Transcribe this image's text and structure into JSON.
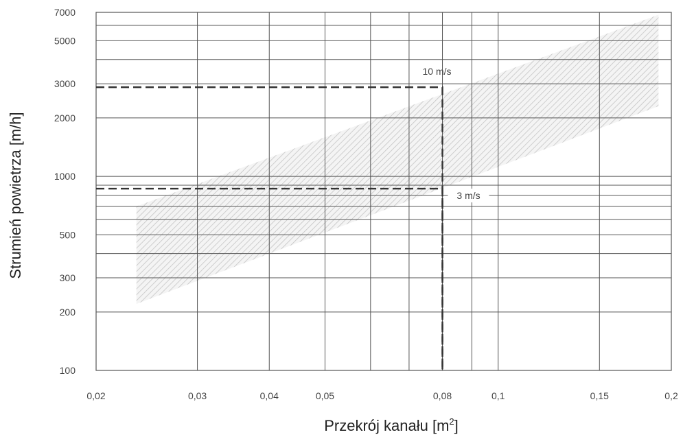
{
  "chart_data": {
    "type": "area",
    "x_scale": "log",
    "y_scale": "log",
    "xlim": [
      0.02,
      0.2
    ],
    "ylim": [
      100,
      7000
    ],
    "xlabel": "Przekrój kanału [m",
    "xlabel_sup": "2",
    "xlabel_end": "]",
    "ylabel": "Strumień powietrza [m/h]",
    "x_ticks": [
      {
        "value": 0.02,
        "label": "0,02"
      },
      {
        "value": 0.03,
        "label": "0,03"
      },
      {
        "value": 0.04,
        "label": "0,04"
      },
      {
        "value": 0.05,
        "label": "0,05"
      },
      {
        "value": 0.08,
        "label": "0,08"
      },
      {
        "value": 0.1,
        "label": "0,1"
      },
      {
        "value": 0.15,
        "label": "0,15"
      },
      {
        "value": 0.2,
        "label": "0,2"
      }
    ],
    "x_gridlines": [
      0.03,
      0.04,
      0.05,
      0.06,
      0.07,
      0.08,
      0.09,
      0.1,
      0.15
    ],
    "y_ticks": [
      {
        "value": 100,
        "label": "100"
      },
      {
        "value": 200,
        "label": "200"
      },
      {
        "value": 300,
        "label": "300"
      },
      {
        "value": 500,
        "label": "500"
      },
      {
        "value": 1000,
        "label": "1000"
      },
      {
        "value": 2000,
        "label": "2000"
      },
      {
        "value": 3000,
        "label": "3000"
      },
      {
        "value": 5000,
        "label": "5000"
      },
      {
        "value": 7000,
        "label": "7000"
      }
    ],
    "y_gridlines": [
      200,
      300,
      400,
      500,
      600,
      700,
      800,
      900,
      1000,
      2000,
      3000,
      4000,
      5000,
      6000
    ],
    "band": {
      "x": [
        0.0235,
        0.19
      ],
      "lower": [
        220,
        2300
      ],
      "upper": [
        700,
        6800
      ],
      "fill": "hatched",
      "color": "#c8c8c8"
    },
    "velocity_lines": [
      {
        "label": "10 m/s",
        "x": 0.08,
        "y": 2880
      },
      {
        "label": "3 m/s",
        "x": 0.08,
        "y": 864
      }
    ],
    "guide_lines": [
      {
        "style": "dashed",
        "from_x": 0.02,
        "y": 2880,
        "down_to_x": 0.08
      },
      {
        "style": "dashed",
        "from_x": 0.02,
        "y": 864,
        "down_to_x": 0.08
      }
    ],
    "grid": true,
    "colors": {
      "grid": "#555555",
      "grid_light": "#999999",
      "dashed": "#333333",
      "hatch": "#c4c4c4"
    }
  }
}
